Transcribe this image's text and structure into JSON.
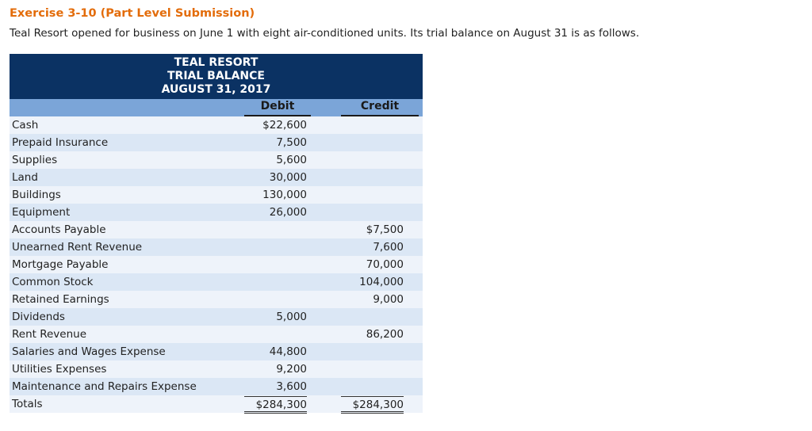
{
  "exercise": {
    "title": "Exercise 3-10 (Part Level Submission)",
    "intro": "Teal Resort opened for business on June 1 with eight air-conditioned units. Its trial balance on August 31 is as follows."
  },
  "trial_balance": {
    "heading": [
      "TEAL RESORT",
      "TRIAL BALANCE",
      "AUGUST 31, 2017"
    ],
    "columns": {
      "debit": "Debit",
      "credit": "Credit"
    },
    "rows": [
      {
        "account": "Cash",
        "debit": "$22,600",
        "credit": ""
      },
      {
        "account": "Prepaid Insurance",
        "debit": "7,500",
        "credit": ""
      },
      {
        "account": "Supplies",
        "debit": "5,600",
        "credit": ""
      },
      {
        "account": "Land",
        "debit": "30,000",
        "credit": ""
      },
      {
        "account": "Buildings",
        "debit": "130,000",
        "credit": ""
      },
      {
        "account": "Equipment",
        "debit": "26,000",
        "credit": ""
      },
      {
        "account": "Accounts Payable",
        "debit": "",
        "credit": "$7,500"
      },
      {
        "account": "Unearned Rent Revenue",
        "debit": "",
        "credit": "7,600"
      },
      {
        "account": "Mortgage Payable",
        "debit": "",
        "credit": "70,000"
      },
      {
        "account": "Common Stock",
        "debit": "",
        "credit": "104,000"
      },
      {
        "account": "Retained Earnings",
        "debit": "",
        "credit": "9,000"
      },
      {
        "account": "Dividends",
        "debit": "5,000",
        "credit": ""
      },
      {
        "account": "Rent Revenue",
        "debit": "",
        "credit": "86,200"
      },
      {
        "account": "Salaries and Wages Expense",
        "debit": "44,800",
        "credit": ""
      },
      {
        "account": "Utilities Expenses",
        "debit": "9,200",
        "credit": ""
      },
      {
        "account": "Maintenance and Repairs Expense",
        "debit": "3,600",
        "credit": ""
      }
    ],
    "totals": {
      "label": "Totals",
      "debit": "$284,300",
      "credit": "$284,300"
    }
  }
}
